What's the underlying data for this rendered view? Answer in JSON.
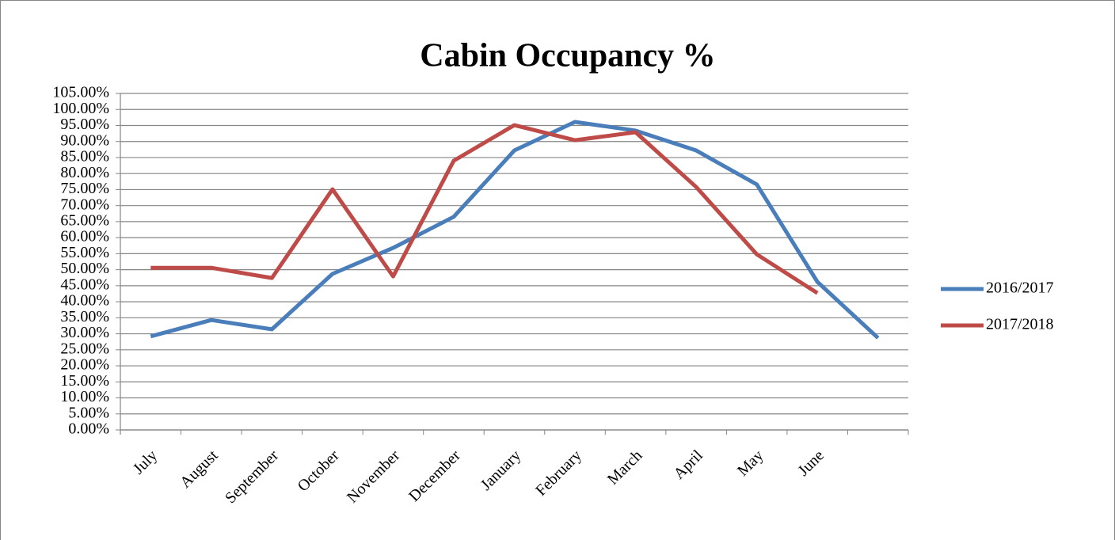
{
  "chart_data": {
    "type": "line",
    "title": "Cabin Occupancy %",
    "categories": [
      "July",
      "August",
      "September",
      "October",
      "November",
      "December",
      "January",
      "February",
      "March",
      "April",
      "May",
      "June",
      null
    ],
    "series": [
      {
        "name": "2016/2017",
        "color": "#4a7ebb",
        "values": [
          29.2,
          34.3,
          31.4,
          48.7,
          56.8,
          66.5,
          87.2,
          96.1,
          93.4,
          87.2,
          76.6,
          46.2,
          28.7
        ]
      },
      {
        "name": "2017/2018",
        "color": "#be4b48",
        "values": [
          50.6,
          50.6,
          47.4,
          75.1,
          47.9,
          84.0,
          95.1,
          90.4,
          92.9,
          75.8,
          54.8,
          42.7,
          null
        ]
      }
    ],
    "ylim": [
      0,
      105
    ],
    "yticks": [
      {
        "value": 0,
        "label": "0.00%"
      },
      {
        "value": 5,
        "label": "5.00%"
      },
      {
        "value": 10,
        "label": "10.00%"
      },
      {
        "value": 15,
        "label": "15.00%"
      },
      {
        "value": 20,
        "label": "20.00%"
      },
      {
        "value": 25,
        "label": "25.00%"
      },
      {
        "value": 30,
        "label": "30.00%"
      },
      {
        "value": 35,
        "label": "35.00%"
      },
      {
        "value": 40,
        "label": "40.00%"
      },
      {
        "value": 45,
        "label": "45.00%"
      },
      {
        "value": 50,
        "label": "50.00%"
      },
      {
        "value": 55,
        "label": "55.00%"
      },
      {
        "value": 60,
        "label": "60.00%"
      },
      {
        "value": 65,
        "label": "65.00%"
      },
      {
        "value": 70,
        "label": "70.00%"
      },
      {
        "value": 75,
        "label": "75.00%"
      },
      {
        "value": 80,
        "label": "80.00%"
      },
      {
        "value": 85,
        "label": "85.00%"
      },
      {
        "value": 90,
        "label": "90.00%"
      },
      {
        "value": 95,
        "label": "95.00%"
      },
      {
        "value": 100,
        "label": "100.00%"
      },
      {
        "value": 105,
        "label": "105.00%"
      }
    ],
    "grid": true,
    "legend": "right"
  }
}
